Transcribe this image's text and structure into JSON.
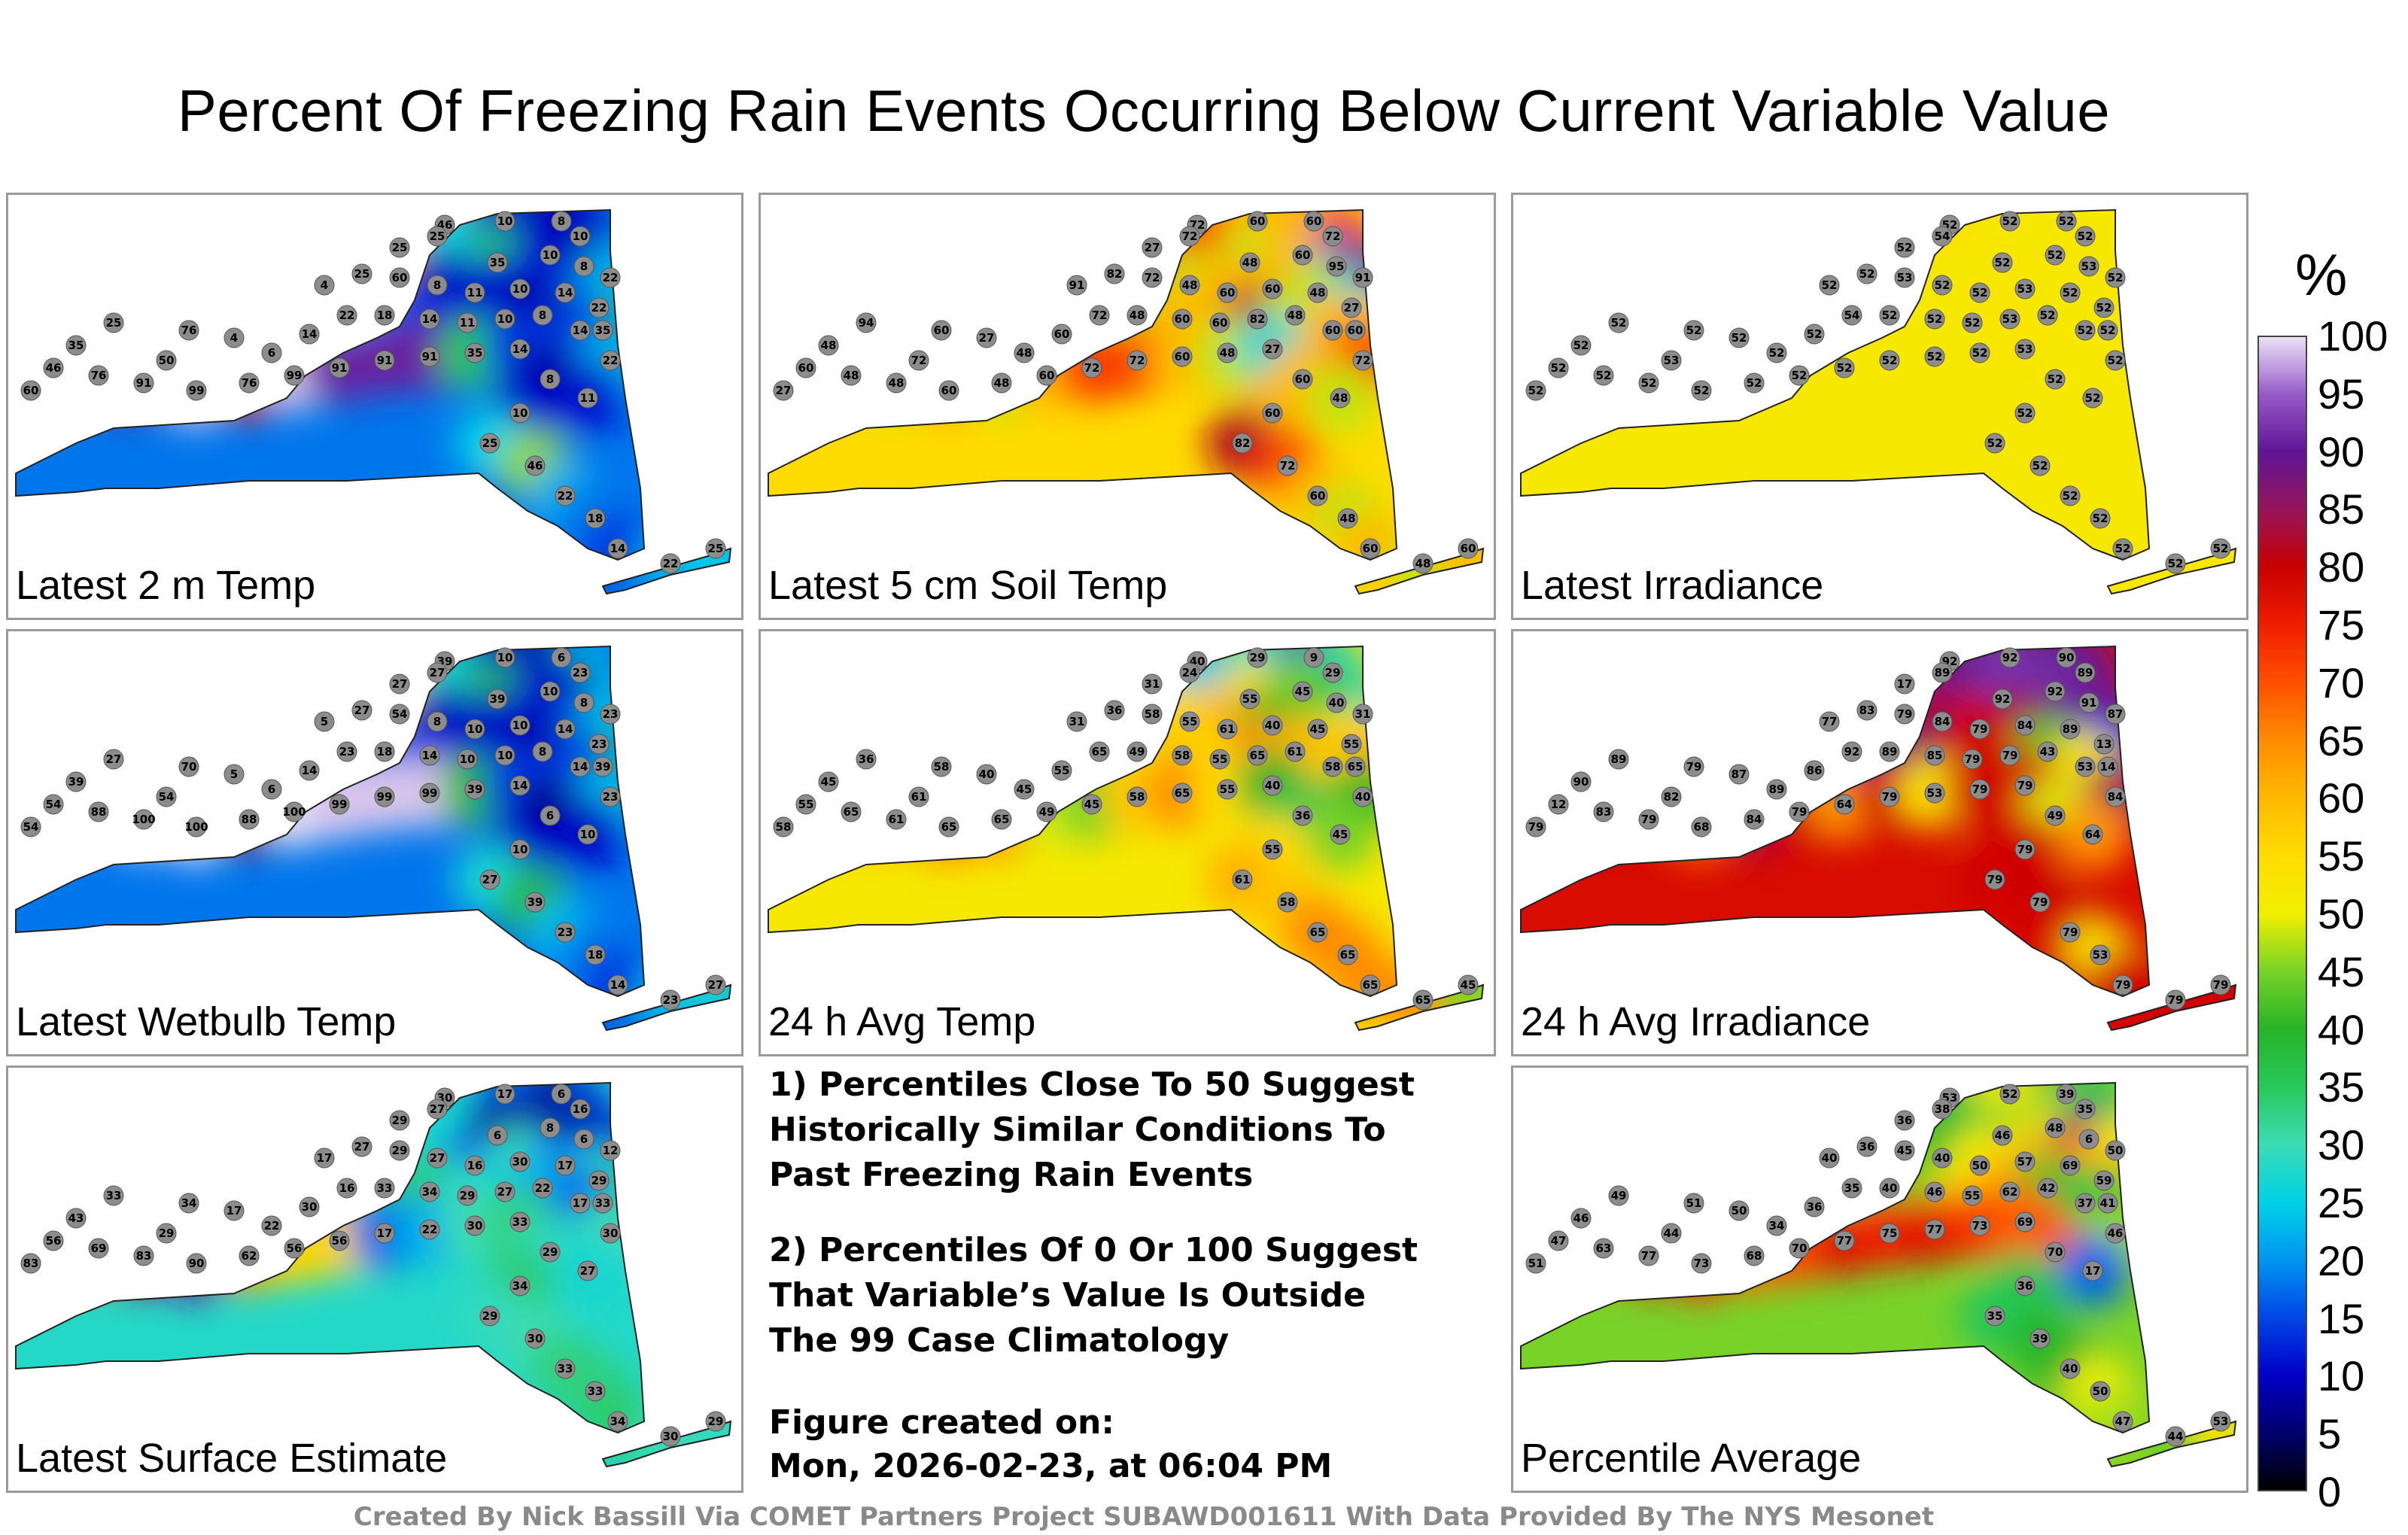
{
  "title": "Percent Of Freezing Rain Events Occurring Below Current Variable Value",
  "colorbar": {
    "unit": "%",
    "ticks": [
      "100",
      "95",
      "90",
      "85",
      "80",
      "75",
      "70",
      "65",
      "60",
      "55",
      "50",
      "45",
      "40",
      "35",
      "30",
      "25",
      "20",
      "15",
      "10",
      "5",
      "0"
    ]
  },
  "notes": {
    "note1": "1) Percentiles Close To 50 Suggest\nHistorically Similar Conditions To\nPast Freezing Rain Events",
    "note2": "2) Percentiles Of 0 Or 100 Suggest\nThat Variable’s Value Is Outside\nThe 99 Case Climatology",
    "created_label": "Figure created on:",
    "created_date": "Mon, 2026-02-23, at 06:04 PM"
  },
  "footer": "Created By Nick Bassill Via COMET Partners Project SUBAWD001611 With Data Provided By The NYS Mesonet",
  "chart_data": [
    {
      "type": "heatmap",
      "title": "Latest 2 m Temp",
      "base_value": 18,
      "station_values": [
        46,
        10,
        8,
        10,
        25,
        25,
        35,
        10,
        8,
        22,
        4,
        25,
        60,
        8,
        11,
        10,
        14,
        22,
        35,
        50,
        76,
        4,
        6,
        14,
        22,
        18,
        14,
        11,
        10,
        8,
        14,
        22,
        25,
        35,
        46,
        60,
        76,
        91,
        99,
        76,
        99,
        91,
        91,
        91,
        35,
        14,
        8,
        11,
        10,
        25,
        46,
        22,
        18,
        14,
        22,
        25
      ]
    },
    {
      "type": "heatmap",
      "title": "Latest 5 cm Soil Temp",
      "base_value": 55,
      "station_values": [
        72,
        60,
        60,
        72,
        27,
        72,
        48,
        60,
        95,
        91,
        91,
        82,
        72,
        48,
        60,
        60,
        48,
        27,
        60,
        72,
        60,
        27,
        48,
        60,
        72,
        48,
        60,
        60,
        82,
        48,
        60,
        72,
        94,
        48,
        60,
        27,
        48,
        48,
        60,
        48,
        60,
        72,
        72,
        60,
        48,
        27,
        60,
        48,
        60,
        82,
        72,
        60,
        48,
        60,
        48,
        60
      ]
    },
    {
      "type": "heatmap",
      "title": "Latest Irradiance",
      "base_value": 52,
      "station_values": [
        52,
        52,
        52,
        52,
        52,
        54,
        52,
        52,
        53,
        52,
        52,
        52,
        53,
        52,
        52,
        53,
        52,
        52,
        52,
        53,
        52,
        52,
        52,
        52,
        54,
        52,
        52,
        52,
        53,
        52,
        52,
        52,
        52,
        52,
        52,
        52,
        52,
        52,
        52,
        52,
        52,
        52,
        52,
        52,
        52,
        53,
        52,
        52,
        52,
        52,
        52,
        52,
        52,
        52,
        52,
        52
      ]
    },
    {
      "type": "heatmap",
      "title": "Latest Wetbulb Temp",
      "base_value": 18,
      "station_values": [
        39,
        10,
        6,
        23,
        27,
        27,
        39,
        10,
        8,
        23,
        5,
        27,
        54,
        8,
        10,
        10,
        14,
        23,
        39,
        54,
        70,
        5,
        6,
        14,
        23,
        18,
        14,
        10,
        10,
        8,
        14,
        23,
        27,
        39,
        54,
        54,
        88,
        100,
        100,
        88,
        100,
        99,
        99,
        99,
        39,
        14,
        6,
        10,
        10,
        27,
        39,
        23,
        18,
        14,
        23,
        27
      ]
    },
    {
      "type": "heatmap",
      "title": "24 h Avg Temp",
      "base_value": 52,
      "station_values": [
        40,
        29,
        9,
        29,
        31,
        24,
        55,
        45,
        40,
        31,
        31,
        36,
        58,
        55,
        61,
        40,
        45,
        55,
        65,
        61,
        58,
        40,
        45,
        55,
        65,
        49,
        58,
        55,
        65,
        61,
        58,
        40,
        36,
        45,
        55,
        58,
        65,
        61,
        65,
        65,
        49,
        45,
        58,
        65,
        55,
        40,
        36,
        45,
        55,
        61,
        58,
        65,
        65,
        65,
        65,
        45
      ]
    },
    {
      "type": "heatmap",
      "title": "24 h Avg Irradiance",
      "base_value": 78,
      "station_values": [
        92,
        92,
        90,
        89,
        17,
        89,
        92,
        92,
        91,
        87,
        77,
        83,
        79,
        84,
        79,
        84,
        89,
        13,
        14,
        82,
        79,
        87,
        89,
        86,
        92,
        89,
        85,
        79,
        79,
        43,
        53,
        84,
        89,
        90,
        12,
        79,
        83,
        79,
        68,
        84,
        79,
        64,
        79,
        53,
        79,
        79,
        49,
        64,
        79,
        79,
        79,
        79,
        53,
        79,
        79,
        79
      ]
    },
    {
      "type": "heatmap",
      "title": "Latest Surface Estimate",
      "base_value": 28,
      "station_values": [
        30,
        17,
        6,
        16,
        29,
        27,
        6,
        8,
        6,
        12,
        17,
        27,
        29,
        27,
        16,
        30,
        17,
        29,
        33,
        29,
        34,
        17,
        22,
        30,
        16,
        33,
        34,
        29,
        27,
        22,
        17,
        30,
        33,
        43,
        56,
        83,
        69,
        83,
        90,
        62,
        56,
        56,
        17,
        22,
        30,
        33,
        29,
        27,
        34,
        29,
        30,
        33,
        33,
        34,
        30,
        29
      ]
    },
    {
      "type": "heatmap",
      "title": "Percentile Average",
      "base_value": 45,
      "station_values": [
        53,
        52,
        39,
        35,
        36,
        38,
        46,
        48,
        6,
        50,
        40,
        36,
        45,
        40,
        50,
        57,
        69,
        59,
        41,
        44,
        51,
        50,
        34,
        36,
        35,
        40,
        46,
        55,
        62,
        42,
        37,
        46,
        49,
        46,
        47,
        51,
        63,
        77,
        73,
        68,
        70,
        77,
        75,
        77,
        73,
        69,
        70,
        17,
        36,
        35,
        39,
        40,
        50,
        47,
        44,
        53
      ]
    }
  ]
}
